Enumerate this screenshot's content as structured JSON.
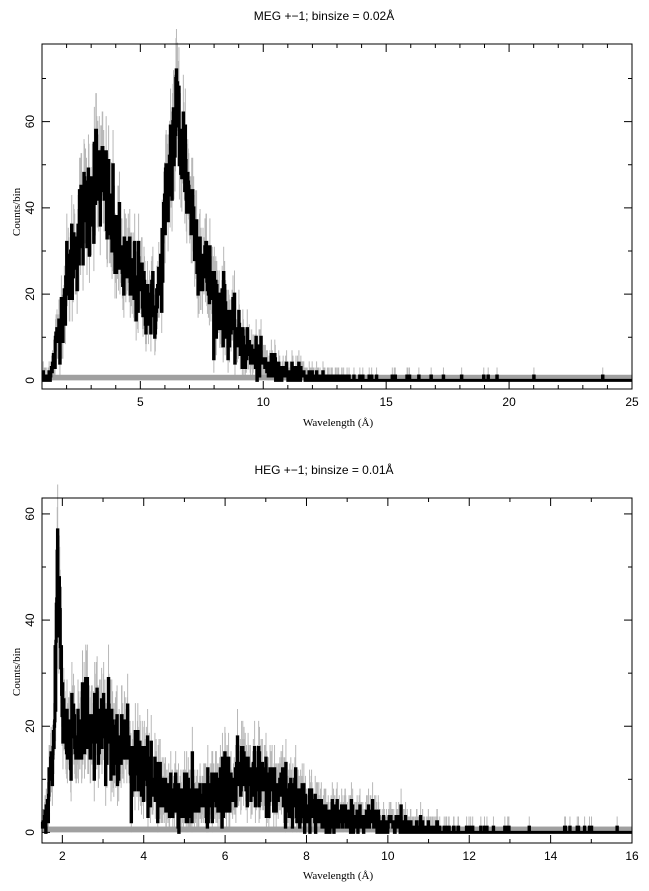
{
  "chart_data": [
    {
      "type": "line",
      "title": "MEG +−1; binsize = 0.02Å",
      "xlabel": "Wavelength (Å)",
      "ylabel": "Counts/bin",
      "xlim": [
        1.0,
        25.0
      ],
      "ylim": [
        -2,
        78
      ],
      "xticks": [
        5,
        10,
        15,
        20,
        25
      ],
      "yticks": [
        0,
        20,
        40,
        60
      ],
      "x_minor_step": 1,
      "y_minor_step": 10,
      "binsize": 0.02,
      "band_upper": 1.3,
      "error_bars": true,
      "error_color": "#b8b8b8",
      "line_color": "#000000",
      "series": [
        {
          "x": [
            1.0,
            1.4,
            1.7,
            2.0,
            2.3,
            2.6,
            3.0,
            3.2,
            3.4,
            3.7,
            4.0,
            4.3,
            4.6,
            4.9,
            5.3,
            5.6,
            5.8,
            6.0,
            6.3,
            6.5,
            6.6,
            6.8,
            7.0,
            7.3,
            7.6,
            8.0,
            8.4,
            8.8,
            9.2,
            9.7,
            10.2,
            10.8,
            11.5,
            12.2,
            13.0,
            14.0,
            15.0,
            17.0,
            19.0,
            22.0,
            25.0
          ],
          "y": [
            0.5,
            1.5,
            12,
            22,
            30,
            36,
            44,
            48,
            46,
            40,
            32,
            27,
            24,
            22,
            19,
            16,
            22,
            38,
            55,
            63,
            58,
            52,
            42,
            33,
            26,
            20,
            16,
            11,
            8,
            5,
            3,
            2,
            1.2,
            0.7,
            0.4,
            0.2,
            0.1,
            0.05,
            0.05,
            0.03,
            0
          ]
        }
      ]
    },
    {
      "type": "line",
      "title": "HEG +−1; binsize = 0.01Å",
      "xlabel": "Wavelength (Å)",
      "ylabel": "Counts/bin",
      "xlim": [
        1.5,
        16.0
      ],
      "ylim": [
        -2,
        63
      ],
      "xticks": [
        2,
        4,
        6,
        8,
        10,
        12,
        14,
        16
      ],
      "yticks": [
        0,
        20,
        40,
        60
      ],
      "x_minor_step": 1,
      "y_minor_step": 10,
      "binsize": 0.01,
      "band_upper": 1.1,
      "error_bars": true,
      "error_color": "#b8b8b8",
      "line_color": "#000000",
      "series": [
        {
          "x": [
            1.5,
            1.6,
            1.7,
            1.8,
            1.85,
            1.9,
            1.95,
            2.0,
            2.1,
            2.3,
            2.6,
            2.9,
            3.2,
            3.5,
            3.8,
            4.2,
            4.6,
            5.0,
            5.4,
            5.8,
            6.1,
            6.4,
            6.7,
            7.0,
            7.4,
            7.8,
            8.2,
            8.6,
            9.0,
            9.5,
            10.0,
            10.5,
            11.0,
            11.5,
            12.0,
            12.5,
            13.0,
            14.0,
            16.0
          ],
          "y": [
            1,
            3,
            8,
            18,
            40,
            52,
            36,
            22,
            17,
            19,
            21,
            20,
            19,
            16,
            13,
            10,
            7,
            6,
            6,
            7,
            9,
            11,
            10,
            9,
            7,
            6,
            4,
            3,
            2.5,
            2,
            1.5,
            1,
            0.7,
            0.5,
            0.35,
            0.25,
            0.15,
            0.08,
            0
          ]
        }
      ]
    }
  ]
}
